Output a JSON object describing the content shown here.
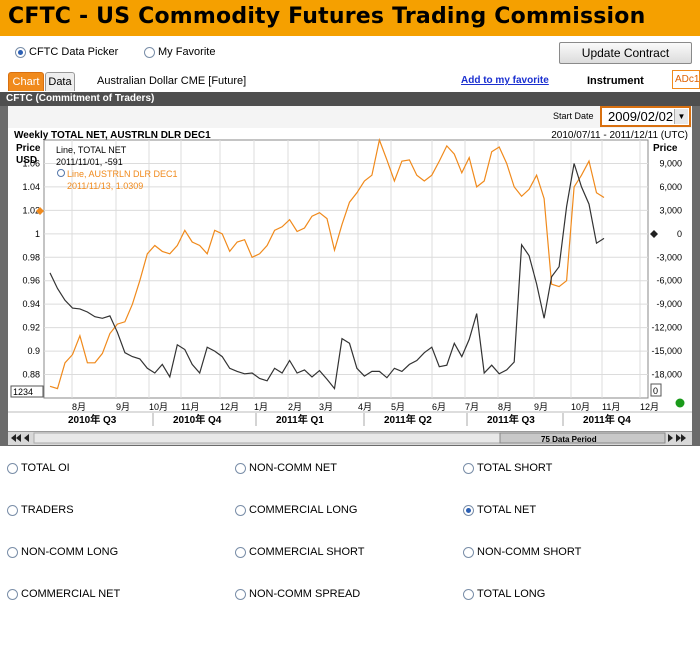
{
  "title": "CFTC - US Commodity Futures Trading Commission",
  "picker": {
    "option1": "CFTC Data Picker",
    "option2": "My Favorite",
    "update_button": "Update Contract"
  },
  "tabs": {
    "chart": "Chart",
    "data": "Data"
  },
  "instrument": {
    "name": "Australian Dollar CME [Future]",
    "add_favorite": "Add to my favorite",
    "label": "Instrument",
    "code": "ADc1"
  },
  "panel": {
    "title": "CFTC (Commitment of Traders)",
    "start_date_label": "Start Date",
    "start_date_value": "2009/02/02"
  },
  "chart_header": {
    "left": "Weekly TOTAL NET, AUSTRLN DLR DEC1",
    "right": "2010/07/11 - 2011/12/11 (UTC)",
    "left_axis_title1": "Price",
    "left_axis_title2": "USD",
    "right_axis_title": "Price",
    "tooltip_line1": "Line, TOTAL NET",
    "tooltip_line2": "2011/11/01, -591",
    "tooltip_line3": "Line, AUSTRLN DLR DEC1",
    "tooltip_line4": "2011/11/13, 1.0309",
    "corner_left": "1234",
    "corner_right": "0"
  },
  "scroll": {
    "period_label": "75 Data Period"
  },
  "colors": {
    "accent": "#f5a000",
    "price_line": "#f08a1c",
    "net_line": "#333333",
    "link": "#1a2fd0"
  },
  "options": [
    {
      "label": "TOTAL OI",
      "selected": false
    },
    {
      "label": "NON-COMM NET",
      "selected": false
    },
    {
      "label": "TOTAL SHORT",
      "selected": false
    },
    {
      "label": "TRADERS",
      "selected": false
    },
    {
      "label": "COMMERCIAL LONG",
      "selected": false
    },
    {
      "label": "TOTAL NET",
      "selected": true
    },
    {
      "label": "NON-COMM LONG",
      "selected": false
    },
    {
      "label": "COMMERCIAL SHORT",
      "selected": false
    },
    {
      "label": "NON-COMM SHORT",
      "selected": false
    },
    {
      "label": "COMMERCIAL NET",
      "selected": false
    },
    {
      "label": "NON-COMM SPREAD",
      "selected": false
    },
    {
      "label": "TOTAL LONG",
      "selected": false
    }
  ],
  "chart_data": {
    "type": "line",
    "left_axis": {
      "ticks": [
        "1.06",
        "1.04",
        "1.02",
        "1",
        "0.98",
        "0.96",
        "0.94",
        "0.92",
        "0.9",
        "0.88"
      ],
      "range": [
        0.86,
        1.08
      ]
    },
    "right_axis": {
      "ticks": [
        "9,000",
        "6,000",
        "3,000",
        "0",
        "-3,000",
        "-6,000",
        "-9,000",
        "-12,000",
        "-15,000",
        "-18,000"
      ],
      "range": [
        -21000,
        12000
      ]
    },
    "x_ticks": [
      "8月",
      "9月",
      "10月",
      "11月",
      "12月",
      "1月",
      "2月",
      "3月",
      "4月",
      "5月",
      "6月",
      "7月",
      "8月",
      "9月",
      "10月",
      "11月",
      "12月"
    ],
    "quarter_labels": [
      "2010年 Q3",
      "2010年 Q4",
      "2011年 Q1",
      "2011年 Q2",
      "2011年 Q3",
      "2011年 Q4"
    ],
    "series": [
      {
        "name": "AUSTRLN DLR DEC1",
        "axis": "left",
        "values": [
          0.87,
          0.868,
          0.89,
          0.897,
          0.913,
          0.89,
          0.89,
          0.898,
          0.915,
          0.923,
          0.925,
          0.94,
          0.96,
          0.983,
          0.99,
          0.985,
          0.983,
          0.99,
          1.003,
          0.993,
          0.99,
          0.983,
          1.003,
          1.0,
          0.985,
          0.993,
          0.995,
          0.98,
          0.983,
          0.99,
          1.003,
          1.006,
          1.012,
          1.002,
          1.005,
          1.015,
          1.018,
          1.013,
          0.986,
          1.008,
          1.027,
          1.035,
          1.045,
          1.05,
          1.08,
          1.063,
          1.045,
          1.062,
          1.063,
          1.05,
          1.045,
          1.05,
          1.062,
          1.075,
          1.068,
          1.052,
          1.065,
          1.04,
          1.045,
          1.07,
          1.074,
          1.06,
          1.04,
          1.032,
          1.038,
          1.05,
          1.03,
          0.957,
          0.955,
          0.96,
          1.04,
          1.05,
          1.062,
          1.035,
          1.031
        ]
      },
      {
        "name": "TOTAL NET",
        "axis": "right",
        "values": [
          -5000,
          -7000,
          -8500,
          -9500,
          -9600,
          -10000,
          -10600,
          -10800,
          -10500,
          -12600,
          -15200,
          -15700,
          -16000,
          -17200,
          -17800,
          -16700,
          -18300,
          -14200,
          -14800,
          -16700,
          -17800,
          -14500,
          -15000,
          -15700,
          -17200,
          -17600,
          -17900,
          -17800,
          -18500,
          -18800,
          -17200,
          -17800,
          -16200,
          -17800,
          -17400,
          -18300,
          -17500,
          -18600,
          -19800,
          -13400,
          -14000,
          -17200,
          -18200,
          -17600,
          -17600,
          -18400,
          -17200,
          -17600,
          -16700,
          -16200,
          -15200,
          -14500,
          -17000,
          -16800,
          -14000,
          -15700,
          -13500,
          -10200,
          -17800,
          -16800,
          -17900,
          -17400,
          -16400,
          -1400,
          -2800,
          -6400,
          -10800,
          -5500,
          -4200,
          3500,
          9000,
          6000,
          3800,
          -1200,
          -591
        ]
      }
    ],
    "grid": true
  }
}
